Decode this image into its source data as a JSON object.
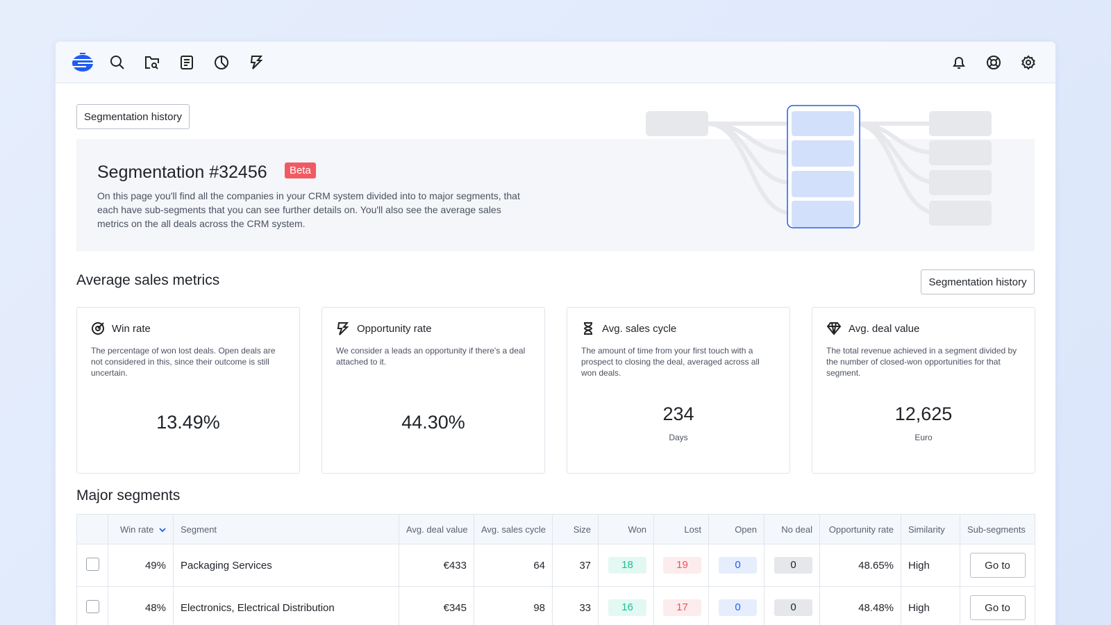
{
  "nav": {
    "icons": [
      "logo",
      "search-icon",
      "folder-search-icon",
      "document-icon",
      "pie-chart-icon",
      "bolt-icon"
    ],
    "right_icons": [
      "bell-icon",
      "lifebuoy-icon",
      "gear-icon"
    ]
  },
  "history_button": "Segmentation history",
  "hero": {
    "title": "Segmentation #32456",
    "badge": "Beta",
    "description": "On this page you'll find all the companies in your CRM system divided into to major segments, that each have sub-segments that you can see further details on. You'll also see the average sales metrics on the all deals across the CRM system."
  },
  "metrics": {
    "title": "Average sales metrics",
    "history_button": "Segmentation history",
    "cards": [
      {
        "icon": "target-icon",
        "title": "Win rate",
        "desc": "The percentage of won lost deals. Open deals are not considered in this, since their outcome is still uncertain.",
        "value": "13.49%",
        "unit": ""
      },
      {
        "icon": "bolt-icon",
        "title": "Opportunity rate",
        "desc": "We consider a leads an opportunity if there's a deal attached to it.",
        "value": "44.30%",
        "unit": ""
      },
      {
        "icon": "hourglass-icon",
        "title": "Avg. sales cycle",
        "desc": "The amount of time from your first touch with a prospect to closing the deal, averaged across all won deals.",
        "value": "234",
        "unit": "Days"
      },
      {
        "icon": "diamond-icon",
        "title": "Avg. deal value",
        "desc": "The total revenue achieved in a segment divided by the number of closed-won opportunities for that segment.",
        "value": "12,625",
        "unit": "Euro"
      }
    ]
  },
  "segments": {
    "title": "Major segments",
    "columns": [
      "",
      "Win rate",
      "Segment",
      "Avg. deal value",
      "Avg. sales cycle",
      "Size",
      "Won",
      "Lost",
      "Open",
      "No deal",
      "Opportunity rate",
      "Similarity",
      "Sub-segments"
    ],
    "rows": [
      {
        "win_rate": "49%",
        "segment": "Packaging Services",
        "deal": "€433",
        "cycle": "64",
        "size": "37",
        "won": "18",
        "lost": "19",
        "open": "0",
        "nodeal": "0",
        "opp": "48.65%",
        "sim": "High",
        "action": "Go to"
      },
      {
        "win_rate": "48%",
        "segment": "Electronics, Electrical Distribution",
        "deal": "€345",
        "cycle": "98",
        "size": "33",
        "won": "16",
        "lost": "17",
        "open": "0",
        "nodeal": "0",
        "opp": "48.48%",
        "sim": "High",
        "action": "Go to"
      }
    ]
  },
  "colors": {
    "accent": "#1f5cf0",
    "won_bg": "#e3f8f2",
    "won_fg": "#1bbf95",
    "lost_bg": "#fdeced",
    "lost_fg": "#f0515c",
    "open_bg": "#e6eefd",
    "open_fg": "#1f5cf0",
    "nodeal_bg": "#e5e7ea"
  }
}
